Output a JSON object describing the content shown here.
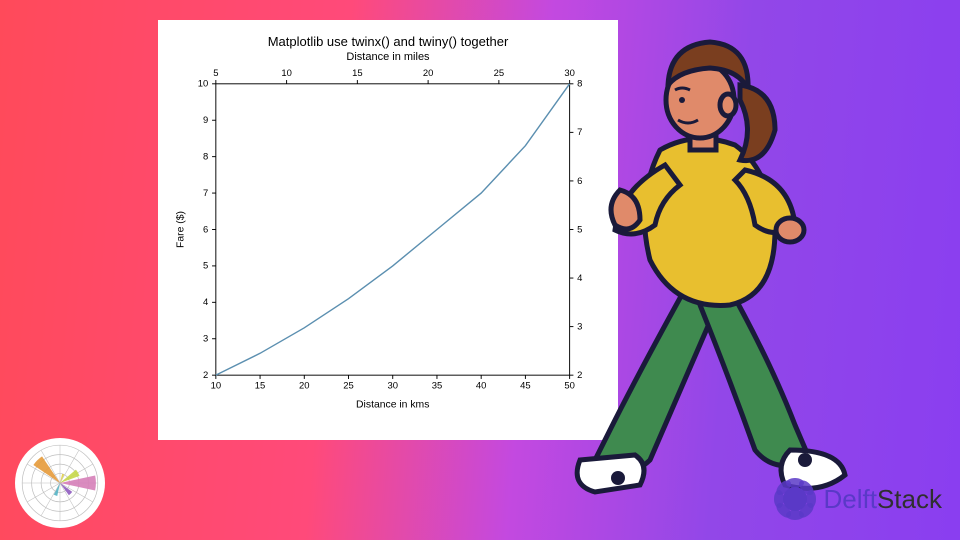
{
  "background": {
    "gradient_stops": [
      "#ff4a5a",
      "#ff4a7a",
      "#c349e0",
      "#9247e8",
      "#8a3ef0"
    ]
  },
  "chart": {
    "type": "line",
    "title": "Matplotlib use twinx() and twiny() together",
    "title_fontsize": 13,
    "top_xlabel": "Distance in miles",
    "bottom_xlabel": "Distance in kms",
    "left_ylabel": "Fare ($)",
    "label_fontsize": 11,
    "tick_fontsize": 10,
    "background_color": "#ffffff",
    "line_color": "#5b8fb0",
    "line_width": 1.5,
    "axis_color": "#000000",
    "x_bottom": {
      "min": 10,
      "max": 50,
      "ticks": [
        10,
        15,
        20,
        25,
        30,
        35,
        40,
        45,
        50
      ]
    },
    "x_top": {
      "min": 5,
      "max": 30,
      "ticks": [
        5,
        10,
        15,
        20,
        25,
        30
      ]
    },
    "y_left": {
      "min": 2,
      "max": 10,
      "ticks": [
        2,
        3,
        4,
        5,
        6,
        7,
        8,
        9,
        10
      ]
    },
    "y_right": {
      "min": 2,
      "max": 8,
      "ticks": [
        2,
        3,
        4,
        5,
        6,
        7,
        8
      ]
    },
    "data": {
      "x": [
        10,
        15,
        20,
        25,
        30,
        35,
        40,
        45,
        50
      ],
      "y": [
        2,
        2.6,
        3.3,
        4.1,
        5.0,
        6.0,
        7.0,
        8.3,
        10.0
      ]
    }
  },
  "polar_icon": {
    "type": "polar-rose",
    "background_color": "#ffffff",
    "ring_color": "#bfbfbf",
    "wedges": [
      {
        "angle_deg": 90,
        "span_deg": 24,
        "r": 0.95,
        "color": "#d67fb8"
      },
      {
        "angle_deg": 60,
        "span_deg": 20,
        "r": 0.55,
        "color": "#c7d84a"
      },
      {
        "angle_deg": 135,
        "span_deg": 18,
        "r": 0.4,
        "color": "#8e5bbf"
      },
      {
        "angle_deg": 200,
        "span_deg": 16,
        "r": 0.35,
        "color": "#54b2c4"
      },
      {
        "angle_deg": 315,
        "span_deg": 22,
        "r": 0.85,
        "color": "#e69a3a"
      },
      {
        "angle_deg": 20,
        "span_deg": 14,
        "r": 0.25,
        "color": "#e0d04a"
      }
    ]
  },
  "logo": {
    "text_main": "Delft",
    "text_accent": "Stack",
    "color_main": "#5a39c7",
    "color_accent": "#2f2f2f",
    "badge_outer_color": "#5a39c7",
    "badge_glyph": "</>"
  },
  "person_illustration": {
    "hair_color": "#7a3e1f",
    "skin_color": "#e08a6a",
    "top_color": "#e8bf2f",
    "pants_color": "#3f8a4f",
    "shoe_color": "#ffffff",
    "outline_color": "#1a1a3a"
  }
}
